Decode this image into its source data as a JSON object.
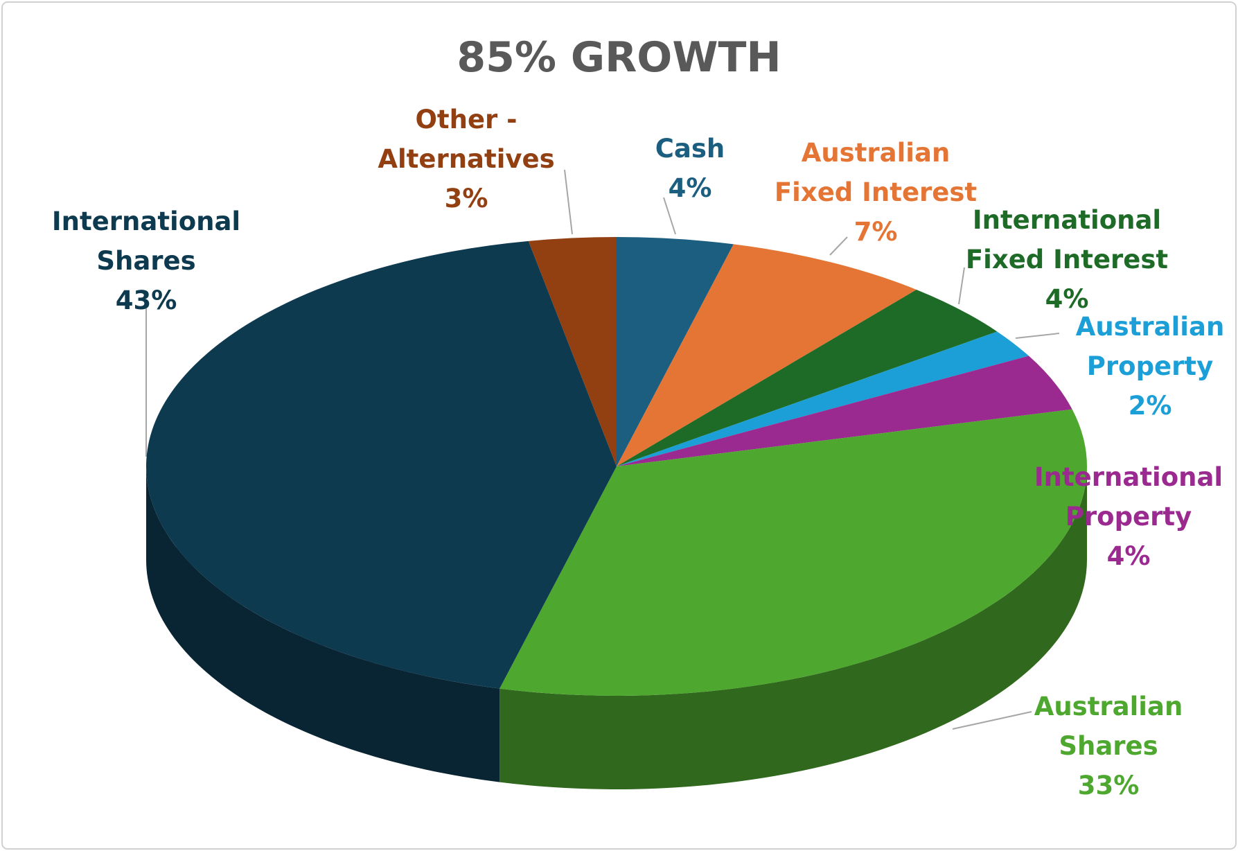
{
  "chart_data": {
    "type": "pie3d",
    "title": "85% GROWTH",
    "categories": [
      "Cash",
      "Australian\nFixed Interest",
      "International\nFixed Interest",
      "Australian\nProperty",
      "International\nProperty",
      "Australian\nShares",
      "International\nShares",
      "Other -\nAlternatives"
    ],
    "values": [
      4,
      7,
      4,
      2,
      4,
      33,
      43,
      3
    ],
    "value_labels": [
      "4%",
      "7%",
      "4%",
      "2%",
      "4%",
      "33%",
      "43%",
      "3%"
    ],
    "colors": [
      "#1b5e80",
      "#e57534",
      "#1e6b27",
      "#1b9fd6",
      "#9a2a8f",
      "#4ea72e",
      "#0e3a50",
      "#923f12"
    ]
  }
}
